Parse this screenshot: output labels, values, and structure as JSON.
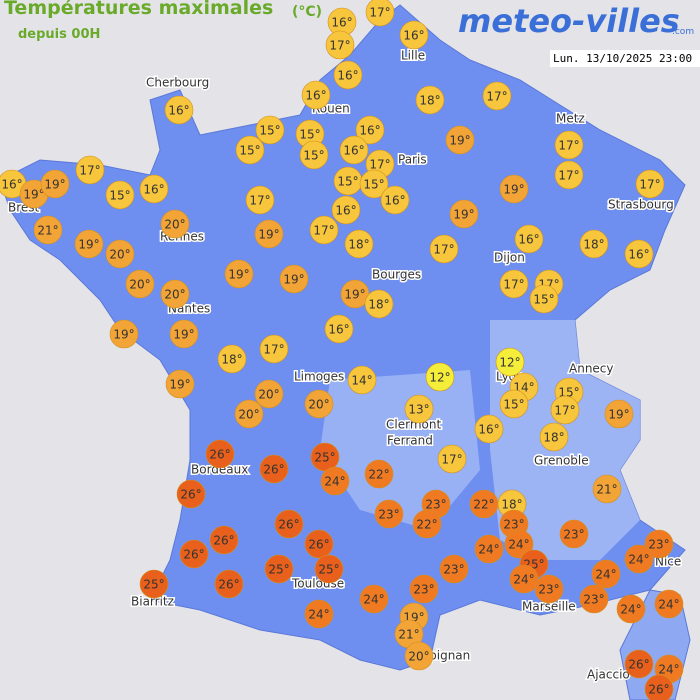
{
  "header": {
    "title": "Températures maximales",
    "unit": "(°C)",
    "subtitle": "depuis 00H",
    "logo": "meteo-villes",
    "logo_suffix": ".com",
    "date": "Lun. 13/10/2025 23:00"
  },
  "cities": [
    "Cherbourg",
    "Lille",
    "Rouen",
    "Paris",
    "Metz",
    "Strasbourg",
    "Brest",
    "Rennes",
    "Dijon",
    "Bourges",
    "Nantes",
    "Annecy",
    "Limoges",
    "Lyon",
    "Clermont",
    "Ferrand",
    "Grenoble",
    "Bordeaux",
    "Toulouse",
    "Nice",
    "Biarritz",
    "Marseille",
    "Perpignan",
    "Ajaccio"
  ],
  "readings": {
    "values": [
      16,
      17,
      17,
      16,
      16,
      16,
      18,
      17,
      16,
      15,
      15,
      16,
      15,
      15,
      16,
      17,
      19,
      17,
      17,
      17,
      16,
      19,
      19,
      15,
      16,
      15,
      15,
      16,
      19,
      17,
      17,
      16,
      19,
      20,
      21,
      19,
      19,
      17,
      18,
      17,
      16,
      18,
      16,
      20,
      20,
      20,
      19,
      19,
      19,
      18,
      17,
      17,
      15,
      19,
      19,
      16,
      18,
      17,
      12,
      19,
      14,
      12,
      14,
      15,
      17,
      15,
      19,
      20,
      20,
      20,
      13,
      16,
      18,
      26,
      26,
      25,
      24,
      22,
      17,
      21,
      26,
      26,
      23,
      23,
      22,
      22,
      18,
      23,
      23,
      26,
      26,
      26,
      24,
      24,
      23,
      24,
      25,
      25,
      23,
      25,
      24,
      24,
      25,
      26,
      23,
      23,
      23,
      24,
      24,
      19,
      24,
      24,
      21,
      20,
      26,
      24,
      26
    ],
    "value_labels": [
      "16°",
      "17°",
      "17°",
      "16°",
      "16°",
      "16°",
      "18°",
      "17°",
      "16°",
      "15°",
      "15°",
      "16°",
      "15°",
      "15°",
      "16°",
      "17°",
      "19°",
      "17°",
      "17°",
      "17°",
      "16°",
      "19°",
      "19°",
      "15°",
      "16°",
      "15°",
      "15°",
      "16°",
      "19°",
      "17°",
      "17°",
      "16°",
      "19°",
      "20°",
      "21°",
      "19°",
      "19°",
      "17°",
      "18°",
      "17°",
      "16°",
      "18°",
      "16°",
      "20°",
      "20°",
      "20°",
      "19°",
      "19°",
      "19°",
      "18°",
      "17°",
      "17°",
      "15°",
      "19°",
      "19°",
      "16°",
      "18°",
      "17°",
      "12°",
      "19°",
      "14°",
      "12°",
      "14°",
      "15°",
      "17°",
      "15°",
      "19°",
      "20°",
      "20°",
      "20°",
      "13°",
      "16°",
      "18°",
      "26°",
      "26°",
      "25°",
      "24°",
      "22°",
      "17°",
      "21°",
      "26°",
      "26°",
      "23°",
      "23°",
      "22°",
      "22°",
      "18°",
      "23°",
      "23°",
      "26°",
      "26°",
      "26°",
      "24°",
      "24°",
      "23°",
      "24°",
      "25°",
      "25°",
      "23°",
      "25°",
      "24°",
      "24°",
      "25°",
      "26°",
      "23°",
      "23°",
      "23°",
      "24°",
      "24°",
      "19°",
      "24°",
      "24°",
      "21°",
      "20°",
      "26°",
      "24°",
      "26°"
    ]
  }
}
